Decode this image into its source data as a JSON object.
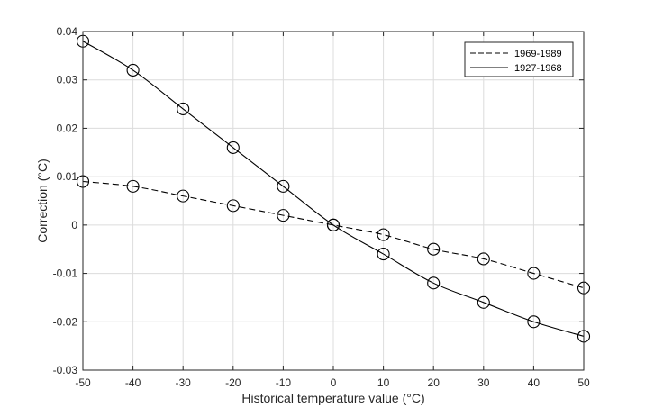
{
  "chart_data": {
    "type": "line",
    "xlabel": "Historical temperature value (°C)",
    "ylabel": "Correction (°C)",
    "xlim": [
      -50,
      50
    ],
    "ylim": [
      -0.03,
      0.04
    ],
    "xticks": [
      "-50",
      "-40",
      "-30",
      "-20",
      "-10",
      "0",
      "10",
      "20",
      "30",
      "40",
      "50"
    ],
    "yticks": [
      "-0.03",
      "-0.02",
      "-0.01",
      "0",
      "0.01",
      "0.02",
      "0.03",
      "0.04"
    ],
    "grid": true,
    "legend_position": "top-right",
    "x": [
      -50,
      -40,
      -30,
      -20,
      -10,
      0,
      10,
      20,
      30,
      40,
      50
    ],
    "series": [
      {
        "name": "1969-1989",
        "line_style": "dashed",
        "marker": "circle",
        "color": "#000000",
        "values": [
          0.009,
          0.008,
          0.006,
          0.004,
          0.002,
          0.0,
          -0.002,
          -0.005,
          -0.007,
          -0.01,
          -0.013
        ]
      },
      {
        "name": "1927-1968",
        "line_style": "solid",
        "marker": "circle",
        "color": "#000000",
        "values": [
          0.038,
          0.032,
          0.024,
          0.016,
          0.008,
          0.0,
          -0.006,
          -0.012,
          -0.016,
          -0.02,
          -0.023
        ]
      }
    ]
  }
}
